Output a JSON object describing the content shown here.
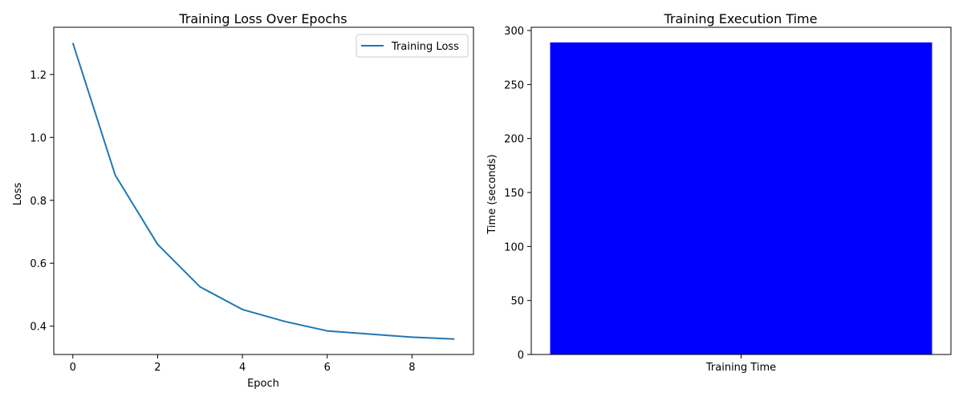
{
  "chart_data": [
    {
      "type": "line",
      "title": "Training Loss Over Epochs",
      "xlabel": "Epoch",
      "ylabel": "Loss",
      "x": [
        0,
        1,
        2,
        3,
        4,
        5,
        6,
        7,
        8,
        9
      ],
      "series": [
        {
          "name": "Training Loss",
          "color": "#1f77b4",
          "values": [
            1.3,
            0.88,
            0.66,
            0.525,
            0.453,
            0.415,
            0.385,
            0.375,
            0.365,
            0.359
          ]
        }
      ],
      "xlim": [
        -0.45,
        9.45
      ],
      "ylim": [
        0.31,
        1.35
      ],
      "xticks": [
        0,
        2,
        4,
        6,
        8
      ],
      "xtick_labels": [
        "0",
        "2",
        "4",
        "6",
        "8"
      ],
      "yticks": [
        0.4,
        0.6,
        0.8,
        1.0,
        1.2
      ],
      "ytick_labels": [
        "0.4",
        "0.6",
        "0.8",
        "1.0",
        "1.2"
      ],
      "legend": "upper-right",
      "grid": false
    },
    {
      "type": "bar",
      "title": "Training Execution Time",
      "xlabel": "",
      "ylabel": "Time (seconds)",
      "categories": [
        "Training Time"
      ],
      "values": [
        289
      ],
      "color": "#0000ff",
      "ylim": [
        0,
        303
      ],
      "yticks": [
        0,
        50,
        100,
        150,
        200,
        250,
        300
      ],
      "ytick_labels": [
        "0",
        "50",
        "100",
        "150",
        "200",
        "250",
        "300"
      ],
      "grid": false
    }
  ]
}
